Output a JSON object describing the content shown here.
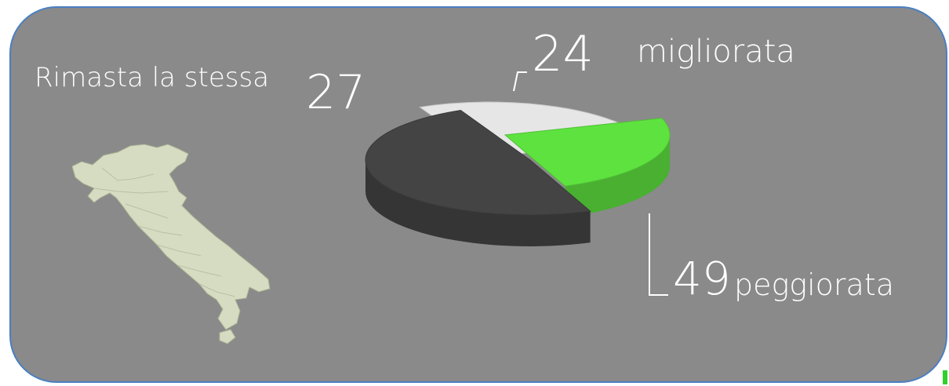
{
  "colors": {
    "panel": "#8a8a8a",
    "panel_border": "#4a7fc2",
    "text": "#ffffff",
    "accent": "#2fd12f",
    "map_fill": "#d6dcc2"
  },
  "map": {
    "icon": "italy-map-icon"
  },
  "chart_data": {
    "type": "pie",
    "categories": [
      "Rimasta la stessa",
      "migliorata",
      "peggiorata"
    ],
    "values": [
      27,
      24,
      49
    ],
    "colors": [
      "#e6e6e6",
      "#5ee23f",
      "#444444"
    ],
    "value_labels": [
      "27",
      "24",
      "49"
    ],
    "legend": "none"
  }
}
